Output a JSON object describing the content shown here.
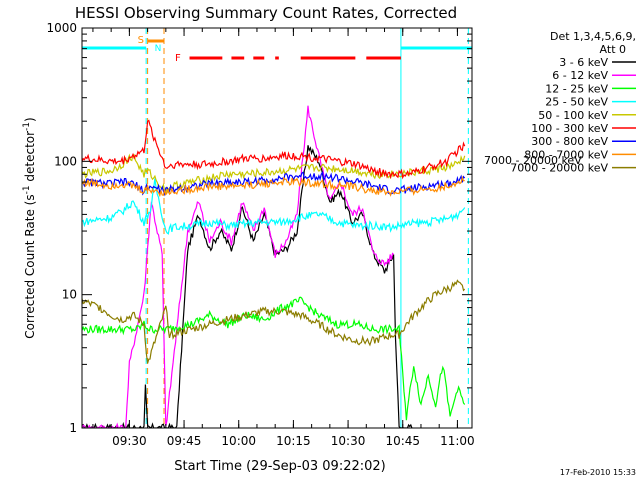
{
  "chart_data": {
    "type": "line",
    "title": "HESSI Observing Summary Count Rates, Corrected",
    "xlabel": "Start Time (29-Sep-03 09:22:02)",
    "ylabel_main": "Corrected Count Rate (s",
    "ylabel_sup": "-1",
    "ylabel_mid": " detector",
    "ylabel_tail": ")",
    "y_scale": "log",
    "ylim": [
      1,
      1000
    ],
    "xlim_minutes": [
      -5,
      102
    ],
    "x_ticks": [
      {
        "t": 8,
        "label": "09:30"
      },
      {
        "t": 23,
        "label": "09:45"
      },
      {
        "t": 38,
        "label": "10:00"
      },
      {
        "t": 53,
        "label": "10:15"
      },
      {
        "t": 68,
        "label": "10:30"
      },
      {
        "t": 83,
        "label": "10:45"
      },
      {
        "t": 98,
        "label": "11:00"
      }
    ],
    "y_ticks": [
      {
        "v": 1,
        "label": "1"
      },
      {
        "v": 10,
        "label": "10"
      },
      {
        "v": 100,
        "label": "100"
      },
      {
        "v": 1000,
        "label": "1000"
      }
    ],
    "right_label": "7000 - 20000 keV",
    "legend": {
      "placement": "top-right",
      "header1": "Det 1,3,4,5,6,9,",
      "header2": "Att 0",
      "entries": [
        {
          "label": "3 - 6 keV",
          "color": "#000000"
        },
        {
          "label": "6 - 12 keV",
          "color": "#ff00ff"
        },
        {
          "label": "12 - 25 keV",
          "color": "#00ff00"
        },
        {
          "label": "25 - 50 keV",
          "color": "#00ffff"
        },
        {
          "label": "50 - 100 keV",
          "color": "#c8c800"
        },
        {
          "label": "100 - 300 keV",
          "color": "#ff0000"
        },
        {
          "label": "300 - 800 keV",
          "color": "#0000ff"
        },
        {
          "label": "800 - 7000 keV",
          "color": "#ff8c00"
        },
        {
          "label": "7000 - 20000 keV",
          "color": "#8b7d00"
        }
      ]
    },
    "flags": {
      "S": {
        "label": "S",
        "color": "#ff8c00",
        "start": 13,
        "end": 17.5
      },
      "N": {
        "label": "N",
        "color": "#00ffff"
      },
      "F": {
        "label": "F",
        "color": "#ff0000"
      }
    },
    "series": [
      {
        "name": "3 - 6 keV",
        "color": "#000000",
        "x": [
          -5,
          8,
          12,
          12.4,
          13,
          18,
          19,
          21,
          24,
          27,
          30,
          33,
          36,
          39,
          42,
          45,
          48,
          51,
          54,
          57,
          60,
          63,
          66,
          69,
          72,
          75,
          78,
          80.5,
          81,
          82,
          84,
          85.5
        ],
        "y": [
          1,
          1,
          1,
          2,
          1,
          1,
          1,
          1,
          22,
          40,
          22,
          30,
          22,
          45,
          25,
          40,
          20,
          22,
          30,
          130,
          100,
          50,
          60,
          35,
          40,
          20,
          15,
          20,
          5,
          1,
          1,
          1
        ]
      },
      {
        "name": "6 - 12 keV",
        "color": "#ff00ff",
        "x": [
          -5,
          7,
          8,
          12,
          14,
          17,
          18,
          24,
          27,
          30,
          33,
          36,
          39,
          42,
          45,
          48,
          51,
          54,
          57,
          60,
          63,
          66,
          69,
          72,
          75,
          78,
          80.5
        ],
        "y": [
          1,
          1,
          3,
          10,
          50,
          20,
          1,
          30,
          50,
          25,
          35,
          25,
          50,
          30,
          45,
          20,
          25,
          40,
          250,
          110,
          50,
          70,
          40,
          45,
          20,
          17,
          20
        ]
      },
      {
        "name": "12 - 25 keV",
        "color": "#00ff00",
        "x": [
          -5,
          10,
          12,
          13.5,
          18,
          25,
          30,
          35,
          40,
          45,
          50,
          55,
          60,
          65,
          70,
          75,
          80,
          82,
          84,
          86,
          88,
          90,
          92,
          94,
          96,
          98,
          100
        ],
        "y": [
          5.5,
          5.5,
          6,
          5.5,
          5.5,
          6,
          7,
          6,
          7,
          6.5,
          8,
          9,
          7,
          6,
          6,
          5.5,
          5.5,
          5.5,
          1.2,
          3,
          1.5,
          2.5,
          1.5,
          3,
          1.2,
          2,
          1.5
        ]
      },
      {
        "name": "25 - 50 keV",
        "color": "#00ffff",
        "x": [
          -5,
          3,
          6,
          9,
          12,
          14,
          15,
          18,
          20,
          25,
          30,
          35,
          40,
          45,
          50,
          55,
          60,
          65,
          70,
          75,
          80,
          85,
          90,
          95,
          98,
          100
        ],
        "y": [
          35,
          38,
          42,
          50,
          35,
          45,
          70,
          30,
          32,
          33,
          35,
          33,
          34,
          35,
          35,
          38,
          40,
          35,
          33,
          33,
          32,
          34,
          35,
          37,
          40,
          45
        ]
      },
      {
        "name": "50 - 100 keV",
        "color": "#c8c800",
        "x": [
          -5,
          3,
          6,
          9,
          12,
          13,
          18,
          20,
          25,
          30,
          35,
          40,
          45,
          50,
          55,
          60,
          65,
          70,
          75,
          80,
          85,
          90,
          95,
          98,
          100
        ],
        "y": [
          80,
          85,
          95,
          110,
          80,
          85,
          60,
          65,
          70,
          75,
          80,
          80,
          82,
          85,
          88,
          90,
          88,
          85,
          80,
          80,
          82,
          85,
          90,
          95,
          110
        ]
      },
      {
        "name": "100 - 300 keV",
        "color": "#ff0000",
        "x": [
          -5,
          3,
          6,
          9,
          12,
          13,
          18,
          20,
          25,
          30,
          35,
          40,
          45,
          50,
          55,
          60,
          65,
          70,
          75,
          80,
          85,
          90,
          95,
          98,
          100
        ],
        "y": [
          105,
          100,
          100,
          110,
          120,
          200,
          90,
          95,
          95,
          95,
          100,
          105,
          105,
          110,
          110,
          105,
          100,
          95,
          85,
          80,
          80,
          90,
          100,
          120,
          130
        ]
      },
      {
        "name": "300 - 800 keV",
        "color": "#0000ff",
        "x": [
          -5,
          3,
          6,
          9,
          12,
          13,
          18,
          20,
          25,
          30,
          35,
          40,
          45,
          50,
          55,
          60,
          65,
          70,
          75,
          80,
          85,
          90,
          95,
          98,
          100
        ],
        "y": [
          70,
          68,
          70,
          68,
          60,
          65,
          60,
          62,
          65,
          68,
          70,
          70,
          72,
          75,
          78,
          78,
          75,
          70,
          65,
          60,
          62,
          65,
          68,
          72,
          75
        ]
      },
      {
        "name": "800 - 7000 keV",
        "color": "#ff8c00",
        "x": [
          -5,
          3,
          6,
          9,
          12,
          13,
          18,
          20,
          25,
          30,
          35,
          40,
          45,
          50,
          55,
          60,
          65,
          70,
          75,
          80,
          85,
          90,
          95,
          98,
          100
        ],
        "y": [
          70,
          66,
          68,
          65,
          60,
          62,
          58,
          60,
          62,
          65,
          65,
          66,
          68,
          70,
          70,
          68,
          66,
          64,
          60,
          58,
          60,
          62,
          65,
          70,
          72
        ]
      },
      {
        "name": "7000 - 20000 keV",
        "color": "#8b7d00",
        "x": [
          -5,
          0,
          3,
          6,
          9,
          12,
          13,
          18,
          19,
          25,
          30,
          35,
          40,
          45,
          50,
          55,
          60,
          65,
          70,
          75,
          80,
          82,
          84,
          86,
          88,
          90,
          92,
          95,
          98,
          100
        ],
        "y": [
          9,
          8,
          7,
          6.5,
          7,
          6,
          3,
          8,
          5,
          5.5,
          6,
          6.5,
          7,
          7.5,
          7.5,
          7,
          6,
          5,
          4.5,
          4.5,
          5,
          5,
          6,
          7,
          8,
          9,
          10,
          11,
          12,
          11
        ]
      }
    ],
    "footer_date": "17-Feb-2010 15:33"
  }
}
